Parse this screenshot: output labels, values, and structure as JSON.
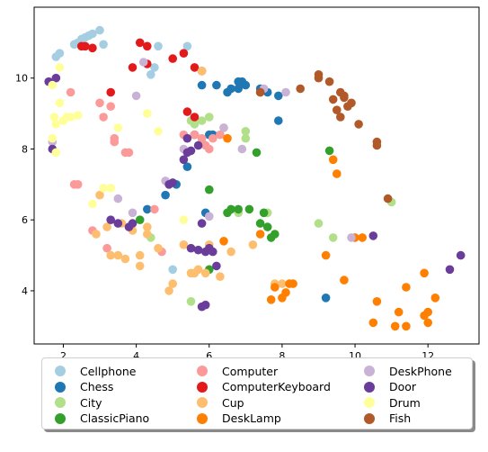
{
  "chart_data": {
    "type": "scatter",
    "title": "",
    "xlabel": "",
    "ylabel": "",
    "xlim": [
      1.2,
      13.4
    ],
    "ylim": [
      2.5,
      12.0
    ],
    "xticks": [
      2,
      4,
      6,
      8,
      10,
      12
    ],
    "yticks": [
      4,
      6,
      8,
      10
    ],
    "grid": false,
    "legend_position": "below",
    "series": [
      {
        "name": "Cellphone",
        "color": "#a6cee3",
        "points": [
          [
            1.9,
            10.7
          ],
          [
            2.4,
            11.0
          ],
          [
            2.5,
            11.1
          ],
          [
            2.7,
            11.2
          ],
          [
            2.8,
            11.25
          ],
          [
            3.0,
            11.35
          ],
          [
            3.1,
            10.95
          ],
          [
            4.4,
            10.1
          ],
          [
            4.6,
            10.9
          ],
          [
            4.5,
            10.3
          ],
          [
            5.0,
            4.6
          ],
          [
            5.4,
            10.9
          ],
          [
            1.8,
            10.6
          ],
          [
            2.3,
            10.95
          ],
          [
            2.6,
            11.15
          ]
        ]
      },
      {
        "name": "Chess",
        "color": "#1f78b4",
        "points": [
          [
            5.6,
            8.4
          ],
          [
            5.8,
            9.8
          ],
          [
            6.1,
            8.4
          ],
          [
            6.2,
            9.8
          ],
          [
            6.5,
            9.6
          ],
          [
            6.6,
            9.7
          ],
          [
            6.8,
            9.7
          ],
          [
            6.9,
            9.9
          ],
          [
            7.0,
            9.8
          ],
          [
            7.4,
            9.7
          ],
          [
            7.6,
            9.6
          ],
          [
            7.9,
            8.8
          ],
          [
            7.9,
            9.5
          ],
          [
            5.4,
            7.5
          ],
          [
            4.3,
            6.3
          ],
          [
            4.8,
            6.7
          ],
          [
            5.1,
            7.0
          ],
          [
            5.9,
            6.2
          ],
          [
            9.2,
            3.8
          ],
          [
            6.0,
            8.4
          ],
          [
            6.8,
            9.9
          ]
        ]
      },
      {
        "name": "City",
        "color": "#b2df8a",
        "points": [
          [
            4.4,
            5.5
          ],
          [
            5.5,
            3.7
          ],
          [
            5.6,
            8.7
          ],
          [
            5.8,
            8.8
          ],
          [
            5.8,
            8.2
          ],
          [
            6.4,
            8.6
          ],
          [
            7.0,
            8.3
          ],
          [
            7.0,
            8.5
          ],
          [
            7.6,
            6.2
          ],
          [
            9.0,
            5.9
          ],
          [
            9.4,
            5.5
          ],
          [
            11.0,
            6.5
          ],
          [
            6.8,
            6.2
          ],
          [
            6.0,
            8.9
          ],
          [
            5.5,
            8.8
          ]
        ]
      },
      {
        "name": "ClassicPiano",
        "color": "#33a02c",
        "points": [
          [
            4.1,
            6.0
          ],
          [
            6.0,
            6.85
          ],
          [
            6.5,
            6.2
          ],
          [
            6.8,
            6.3
          ],
          [
            7.1,
            6.3
          ],
          [
            7.4,
            5.9
          ],
          [
            7.5,
            6.2
          ],
          [
            7.6,
            5.8
          ],
          [
            7.7,
            5.5
          ],
          [
            7.8,
            5.6
          ],
          [
            9.3,
            7.95
          ],
          [
            7.3,
            7.9
          ],
          [
            6.0,
            4.6
          ],
          [
            6.6,
            6.3
          ]
        ]
      },
      {
        "name": "Computer",
        "color": "#fb9a99",
        "points": [
          [
            2.2,
            9.6
          ],
          [
            2.3,
            7.0
          ],
          [
            2.4,
            7.0
          ],
          [
            2.8,
            5.7
          ],
          [
            3.0,
            9.3
          ],
          [
            3.1,
            8.9
          ],
          [
            3.3,
            9.2
          ],
          [
            3.4,
            8.3
          ],
          [
            3.4,
            8.2
          ],
          [
            3.7,
            7.9
          ],
          [
            3.8,
            7.9
          ],
          [
            4.5,
            6.3
          ],
          [
            4.7,
            5.1
          ],
          [
            4.9,
            7.0
          ],
          [
            5.3,
            8.4
          ],
          [
            5.6,
            8.4
          ],
          [
            5.8,
            8.3
          ],
          [
            6.0,
            8.0
          ],
          [
            6.3,
            8.4
          ],
          [
            6.1,
            8.3
          ],
          [
            3.2,
            5.2
          ],
          [
            5.9,
            8.1
          ]
        ]
      },
      {
        "name": "ComputerKeyboard",
        "color": "#e31a1c",
        "points": [
          [
            2.5,
            10.9
          ],
          [
            2.6,
            10.9
          ],
          [
            2.8,
            10.85
          ],
          [
            3.3,
            9.6
          ],
          [
            3.9,
            10.3
          ],
          [
            4.1,
            11.0
          ],
          [
            4.3,
            10.9
          ],
          [
            4.3,
            10.4
          ],
          [
            5.0,
            10.55
          ],
          [
            5.3,
            10.7
          ],
          [
            5.6,
            10.3
          ],
          [
            5.8,
            10.2
          ],
          [
            5.4,
            9.05
          ],
          [
            5.6,
            8.9
          ]
        ]
      },
      {
        "name": "Cup",
        "color": "#fdbf6f",
        "points": [
          [
            3.2,
            5.8
          ],
          [
            3.3,
            5.0
          ],
          [
            3.5,
            5.0
          ],
          [
            3.6,
            5.9
          ],
          [
            3.7,
            4.9
          ],
          [
            3.9,
            5.7
          ],
          [
            4.1,
            5.0
          ],
          [
            4.1,
            4.7
          ],
          [
            4.3,
            5.8
          ],
          [
            4.3,
            5.6
          ],
          [
            4.6,
            5.2
          ],
          [
            4.9,
            4.0
          ],
          [
            5.0,
            4.2
          ],
          [
            5.3,
            5.3
          ],
          [
            5.5,
            4.5
          ],
          [
            5.7,
            4.6
          ],
          [
            5.9,
            4.5
          ],
          [
            6.0,
            5.3
          ],
          [
            6.3,
            4.4
          ],
          [
            6.6,
            5.1
          ],
          [
            7.2,
            5.3
          ],
          [
            7.8,
            4.2
          ],
          [
            8.0,
            4.2
          ],
          [
            3.0,
            6.7
          ],
          [
            5.6,
            4.5
          ],
          [
            5.8,
            10.2
          ],
          [
            9.5,
            7.3
          ],
          [
            2.9,
            5.6
          ]
        ]
      },
      {
        "name": "DeskLamp",
        "color": "#ff7f00",
        "points": [
          [
            6.4,
            5.4
          ],
          [
            7.4,
            5.6
          ],
          [
            7.8,
            4.1
          ],
          [
            8.0,
            3.8
          ],
          [
            8.1,
            3.95
          ],
          [
            8.2,
            4.2
          ],
          [
            8.3,
            4.2
          ],
          [
            9.2,
            5.0
          ],
          [
            9.4,
            7.7
          ],
          [
            9.5,
            7.3
          ],
          [
            9.7,
            4.3
          ],
          [
            10.0,
            5.5
          ],
          [
            10.2,
            5.5
          ],
          [
            10.5,
            3.1
          ],
          [
            10.6,
            3.7
          ],
          [
            11.1,
            3.0
          ],
          [
            11.2,
            3.4
          ],
          [
            11.4,
            3.0
          ],
          [
            11.4,
            4.1
          ],
          [
            11.9,
            4.5
          ],
          [
            12.0,
            3.1
          ],
          [
            12.0,
            3.4
          ],
          [
            12.2,
            3.8
          ],
          [
            7.7,
            3.75
          ],
          [
            6.5,
            8.3
          ],
          [
            11.9,
            3.3
          ]
        ]
      },
      {
        "name": "DeskPhone",
        "color": "#cab2d6",
        "points": [
          [
            1.7,
            8.2
          ],
          [
            3.5,
            6.6
          ],
          [
            3.9,
            6.2
          ],
          [
            4.0,
            9.5
          ],
          [
            4.2,
            10.45
          ],
          [
            4.8,
            7.1
          ],
          [
            5.3,
            8.0
          ],
          [
            6.0,
            6.1
          ],
          [
            6.4,
            8.6
          ],
          [
            6.9,
            8.0
          ],
          [
            7.5,
            9.7
          ],
          [
            8.1,
            9.6
          ],
          [
            9.9,
            5.5
          ]
        ]
      },
      {
        "name": "Door",
        "color": "#6a3d9a",
        "points": [
          [
            1.6,
            9.9
          ],
          [
            1.7,
            8.0
          ],
          [
            1.8,
            10.0
          ],
          [
            3.3,
            6.0
          ],
          [
            3.5,
            5.9
          ],
          [
            3.8,
            5.8
          ],
          [
            3.9,
            5.9
          ],
          [
            4.9,
            7.0
          ],
          [
            5.0,
            7.05
          ],
          [
            5.3,
            7.7
          ],
          [
            5.4,
            7.9
          ],
          [
            5.5,
            7.95
          ],
          [
            5.7,
            8.1
          ],
          [
            5.8,
            5.9
          ],
          [
            5.9,
            5.1
          ],
          [
            6.0,
            5.2
          ],
          [
            6.1,
            5.1
          ],
          [
            6.2,
            4.7
          ],
          [
            5.9,
            3.6
          ],
          [
            5.8,
            3.55
          ],
          [
            5.5,
            5.2
          ],
          [
            5.7,
            5.15
          ],
          [
            7.4,
            9.6
          ],
          [
            10.5,
            5.55
          ],
          [
            12.6,
            4.6
          ],
          [
            12.9,
            5.0
          ],
          [
            5.4,
            8.3
          ]
        ]
      },
      {
        "name": "Drum",
        "color": "#ffff99",
        "points": [
          [
            1.7,
            9.8
          ],
          [
            1.75,
            8.9
          ],
          [
            1.8,
            8.7
          ],
          [
            1.8,
            7.9
          ],
          [
            1.9,
            9.3
          ],
          [
            1.9,
            10.3
          ],
          [
            2.0,
            8.8
          ],
          [
            2.1,
            8.9
          ],
          [
            2.4,
            8.95
          ],
          [
            2.8,
            6.45
          ],
          [
            3.1,
            6.9
          ],
          [
            3.3,
            6.9
          ],
          [
            3.5,
            8.6
          ],
          [
            4.3,
            9.0
          ],
          [
            4.6,
            8.5
          ],
          [
            5.3,
            6.0
          ],
          [
            1.7,
            8.3
          ],
          [
            2.2,
            8.9
          ]
        ]
      },
      {
        "name": "Fish",
        "color": "#b15928",
        "points": [
          [
            7.4,
            9.6
          ],
          [
            8.5,
            9.7
          ],
          [
            9.0,
            10.1
          ],
          [
            9.0,
            10.0
          ],
          [
            9.3,
            9.9
          ],
          [
            9.4,
            9.4
          ],
          [
            9.5,
            9.1
          ],
          [
            9.6,
            8.9
          ],
          [
            9.6,
            9.6
          ],
          [
            9.7,
            9.5
          ],
          [
            9.8,
            9.2
          ],
          [
            9.9,
            9.3
          ],
          [
            10.1,
            8.7
          ],
          [
            10.6,
            8.2
          ],
          [
            10.6,
            8.1
          ],
          [
            10.9,
            6.6
          ],
          [
            9.7,
            9.45
          ]
        ]
      }
    ]
  }
}
